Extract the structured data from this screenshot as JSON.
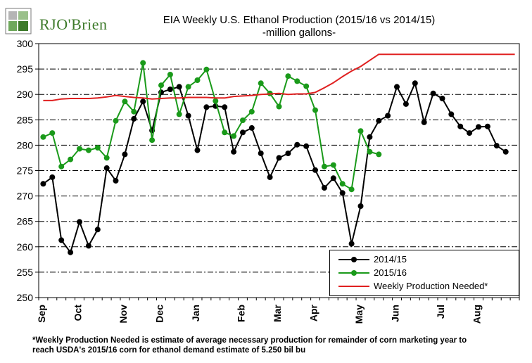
{
  "logo": {
    "name": "RJO'Brien",
    "icon": "rjo-square-logo-icon",
    "color": "#3d7a2a"
  },
  "chart_data": {
    "type": "line",
    "title": "EIA Weekly U.S. Ethanol Production (2015/16 vs 2014/15)",
    "subtitle": "-million  gallons-",
    "ylim": [
      250,
      300
    ],
    "yticks": [
      250,
      255,
      260,
      265,
      270,
      275,
      280,
      285,
      290,
      295,
      300
    ],
    "months": [
      "Sep",
      "Oct",
      "Nov",
      "Dec",
      "Jan",
      "Feb",
      "Mar",
      "Apr",
      "May",
      "Jun",
      "Jul",
      "Aug"
    ],
    "weeks_total": 53,
    "grid": "horizontal dashed",
    "legend_position": "bottom-right",
    "series": [
      {
        "name": "2014/15",
        "color": "#000000",
        "marker": "circle",
        "values": [
          272.4,
          273.7,
          261.3,
          258.9,
          264.9,
          260.2,
          263.4,
          275.5,
          273.0,
          278.2,
          285.2,
          288.6,
          282.9,
          290.4,
          291.0,
          291.5,
          285.8,
          279.0,
          287.5,
          287.7,
          287.5,
          278.7,
          282.5,
          283.4,
          278.4,
          273.7,
          277.5,
          278.4,
          280.1,
          279.8,
          275.1,
          271.6,
          273.5,
          270.6,
          260.6,
          268.0,
          281.6,
          284.8,
          285.8,
          291.5,
          288.1,
          292.2,
          284.5,
          290.2,
          289.2,
          286.1,
          283.7,
          282.4,
          283.6,
          283.7,
          279.9,
          278.7
        ]
      },
      {
        "name": "2015/16",
        "color": "#1a9a1a",
        "marker": "circle",
        "values": [
          281.6,
          282.4,
          275.8,
          277.2,
          279.3,
          279.0,
          279.5,
          277.5,
          284.8,
          288.6,
          286.6,
          296.2,
          281.0,
          291.8,
          293.9,
          286.1,
          291.5,
          292.8,
          294.9,
          288.7,
          282.5,
          281.8,
          284.9,
          286.6,
          292.2,
          290.2,
          287.6,
          293.6,
          292.6,
          291.6,
          286.9,
          275.8,
          276.1,
          272.4,
          271.3,
          282.8,
          278.7,
          278.2
        ]
      },
      {
        "name": "Weekly Production Needed*",
        "color": "#e02020",
        "marker": "none",
        "values": [
          288.8,
          288.8,
          289.1,
          289.2,
          289.2,
          289.2,
          289.3,
          289.5,
          289.8,
          289.6,
          289.4,
          289.3,
          289.1,
          289.2,
          289.3,
          289.3,
          289.4,
          289.4,
          289.4,
          289.3,
          289.3,
          289.6,
          289.7,
          289.8,
          290.0,
          290.1,
          290.2,
          290.0,
          290.1,
          290.1,
          290.4,
          291.3,
          292.3,
          293.5,
          294.6,
          295.5,
          296.7,
          297.9,
          297.9,
          297.9,
          297.9,
          297.9,
          297.9,
          297.9,
          297.9,
          297.9,
          297.9,
          297.9,
          297.9,
          297.9,
          297.9,
          297.9,
          297.9
        ]
      }
    ]
  },
  "footnote": {
    "line1": "*Weekly Production Needed is estimate of average necessary production for remainder of corn marketing year to",
    "line2": "reach USDA's 2015/16 corn for ethanol demand estimate of 5.250 bil bu"
  }
}
